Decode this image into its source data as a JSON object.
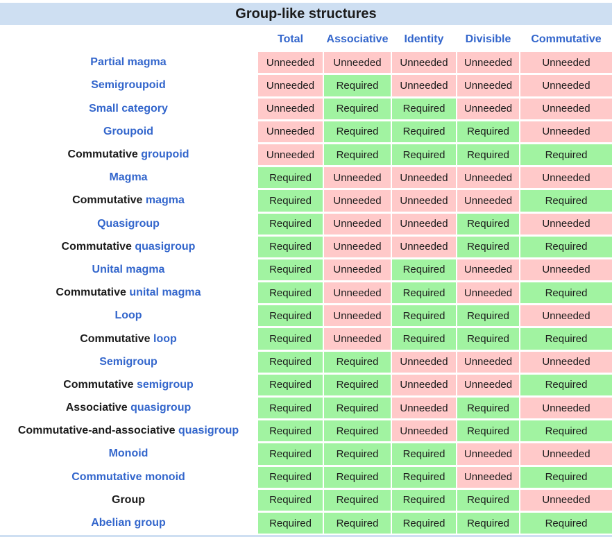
{
  "title": "Group-like structures",
  "columns": [
    "Total",
    "Associative",
    "Identity",
    "Divisible",
    "Commutative"
  ],
  "value_labels": {
    "R": "Required",
    "U": "Unneeded"
  },
  "colors": {
    "header_bg": "#cedff2",
    "required_bg": "#a1f3a1",
    "unneeded_bg": "#ffc9c9",
    "link_color": "#3366cc",
    "text_color": "#1b1b1b"
  },
  "rows": [
    {
      "pre": "",
      "link": "Partial magma",
      "values": [
        "U",
        "U",
        "U",
        "U",
        "U"
      ]
    },
    {
      "pre": "",
      "link": "Semigroupoid",
      "values": [
        "U",
        "R",
        "U",
        "U",
        "U"
      ]
    },
    {
      "pre": "",
      "link": "Small category",
      "values": [
        "U",
        "R",
        "R",
        "U",
        "U"
      ]
    },
    {
      "pre": "",
      "link": "Groupoid",
      "values": [
        "U",
        "R",
        "R",
        "R",
        "U"
      ]
    },
    {
      "pre": "Commutative ",
      "link": "groupoid",
      "values": [
        "U",
        "R",
        "R",
        "R",
        "R"
      ]
    },
    {
      "pre": "",
      "link": "Magma",
      "values": [
        "R",
        "U",
        "U",
        "U",
        "U"
      ]
    },
    {
      "pre": "Commutative ",
      "link": "magma",
      "values": [
        "R",
        "U",
        "U",
        "U",
        "R"
      ]
    },
    {
      "pre": "",
      "link": "Quasigroup",
      "values": [
        "R",
        "U",
        "U",
        "R",
        "U"
      ]
    },
    {
      "pre": "Commutative ",
      "link": "quasigroup",
      "values": [
        "R",
        "U",
        "U",
        "R",
        "R"
      ]
    },
    {
      "pre": "",
      "link": "Unital magma",
      "values": [
        "R",
        "U",
        "R",
        "U",
        "U"
      ]
    },
    {
      "pre": "Commutative ",
      "link": "unital magma",
      "values": [
        "R",
        "U",
        "R",
        "U",
        "R"
      ]
    },
    {
      "pre": "",
      "link": "Loop",
      "values": [
        "R",
        "U",
        "R",
        "R",
        "U"
      ]
    },
    {
      "pre": "Commutative ",
      "link": "loop",
      "values": [
        "R",
        "U",
        "R",
        "R",
        "R"
      ]
    },
    {
      "pre": "",
      "link": "Semigroup",
      "values": [
        "R",
        "R",
        "U",
        "U",
        "U"
      ]
    },
    {
      "pre": "Commutative ",
      "link": "semigroup",
      "values": [
        "R",
        "R",
        "U",
        "U",
        "R"
      ]
    },
    {
      "pre": "Associative ",
      "link": "quasigroup",
      "values": [
        "R",
        "R",
        "U",
        "R",
        "U"
      ]
    },
    {
      "pre": "Commutative-and-associative ",
      "link": "quasigroup",
      "values": [
        "R",
        "R",
        "U",
        "R",
        "R"
      ]
    },
    {
      "pre": "",
      "link": "Monoid",
      "values": [
        "R",
        "R",
        "R",
        "U",
        "U"
      ]
    },
    {
      "pre": "",
      "link": "Commutative monoid",
      "values": [
        "R",
        "R",
        "R",
        "U",
        "R"
      ]
    },
    {
      "pre": "Group",
      "link": "",
      "values": [
        "R",
        "R",
        "R",
        "R",
        "U"
      ]
    },
    {
      "pre": "",
      "link": "Abelian group",
      "values": [
        "R",
        "R",
        "R",
        "R",
        "R"
      ]
    }
  ]
}
